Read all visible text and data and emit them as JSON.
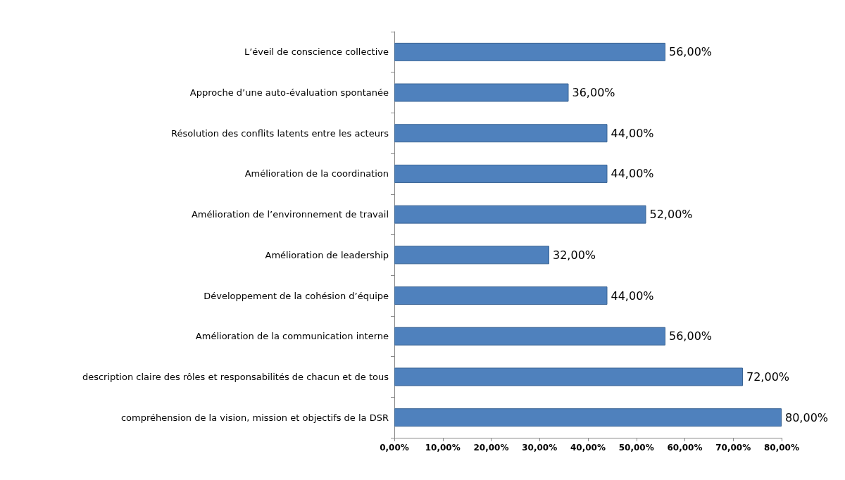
{
  "chart_data": {
    "type": "bar",
    "orientation": "horizontal",
    "categories": [
      "L’éveil de conscience collective",
      "Approche d’une auto-évaluation spontanée",
      "Résolution des conflits latents entre les acteurs",
      "Amélioration de la coordination",
      "Amélioration de l’environnement de travail",
      "Amélioration de leadership",
      "Développement de la cohésion d’équipe",
      "Amélioration de la communication interne",
      "description claire des rôles et responsabilités de chacun et de tous",
      "compréhension de la vision, mission et objectifs de la DSR"
    ],
    "values": [
      56,
      36,
      44,
      44,
      52,
      32,
      44,
      56,
      72,
      80
    ],
    "value_labels": [
      "56,00%",
      "36,00%",
      "44,00%",
      "44,00%",
      "52,00%",
      "32,00%",
      "44,00%",
      "56,00%",
      "72,00%",
      "80,00%"
    ],
    "color": "#4f81bd",
    "xlim": [
      0,
      80
    ],
    "xticks": [
      {
        "value": 0,
        "label": "0,00%"
      },
      {
        "value": 10,
        "label": "10,00%"
      },
      {
        "value": 20,
        "label": "20,00%"
      },
      {
        "value": 30,
        "label": "30,00%"
      },
      {
        "value": 40,
        "label": "40,00%"
      },
      {
        "value": 50,
        "label": "50,00%"
      },
      {
        "value": 60,
        "label": "60,00%"
      },
      {
        "value": 70,
        "label": "70,00%"
      },
      {
        "value": 80,
        "label": "80,00%"
      }
    ],
    "grid": false
  }
}
